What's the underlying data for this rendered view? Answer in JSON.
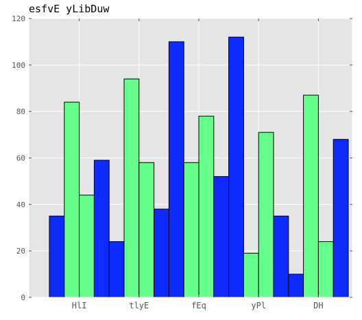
{
  "chart_data": {
    "type": "bar",
    "title": "esfvE yLibDuw",
    "xlabel": "",
    "ylabel": "",
    "categories": [
      "HlI",
      "tlyE",
      "fEq",
      "yPl",
      "DH"
    ],
    "series": [
      {
        "values": [
          35,
          24,
          110,
          112,
          10
        ]
      },
      {
        "values": [
          84,
          94,
          58,
          19,
          87
        ]
      },
      {
        "values": [
          44,
          58,
          78,
          71,
          24
        ]
      },
      {
        "values": [
          59,
          38,
          52,
          35,
          68
        ]
      }
    ],
    "ylim": [
      0,
      120
    ],
    "yticks": [
      0,
      20,
      40,
      60,
      80,
      100,
      120
    ],
    "grid": true,
    "legend": "none",
    "colors": {
      "background": "#e5e5e5",
      "grid": "#ffffff",
      "series": [
        "#0d2bff",
        "#66ff8c",
        "#66ff8c",
        "#0d2bff"
      ],
      "edge": "#000000",
      "tick_text": "#555555",
      "title_text": "#000000"
    }
  }
}
